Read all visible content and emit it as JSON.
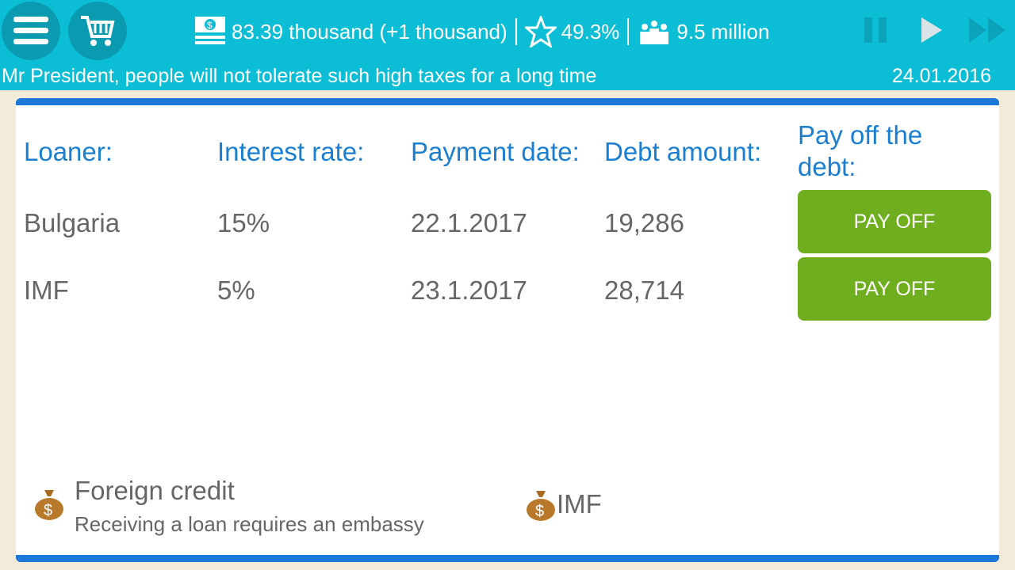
{
  "header": {
    "money": "83.39 thousand (+1 thousand)",
    "rating": "49.3%",
    "population": "9.5 million",
    "message": "Mr President, people will not tolerate such high taxes for a long time",
    "date": "24.01.2016"
  },
  "table": {
    "headers": [
      "Loaner:",
      "Interest rate:",
      "Payment date:",
      "Debt amount:",
      "Pay off the debt:"
    ],
    "rows": [
      {
        "loaner": "Bulgaria",
        "rate": "15%",
        "date": "22.1.2017",
        "amount": "19,286",
        "button": "PAY OFF"
      },
      {
        "loaner": "IMF",
        "rate": "5%",
        "date": "23.1.2017",
        "amount": "28,714",
        "button": "PAY OFF"
      }
    ]
  },
  "footer": {
    "title": "Foreign credit",
    "subtitle": "Receiving a loan requires an embassy",
    "option": "IMF"
  },
  "colors": {
    "topbar": "#0cbdd6",
    "accent": "#1b78d8",
    "button": "#6fae1e",
    "background": "#f3ebd9"
  }
}
